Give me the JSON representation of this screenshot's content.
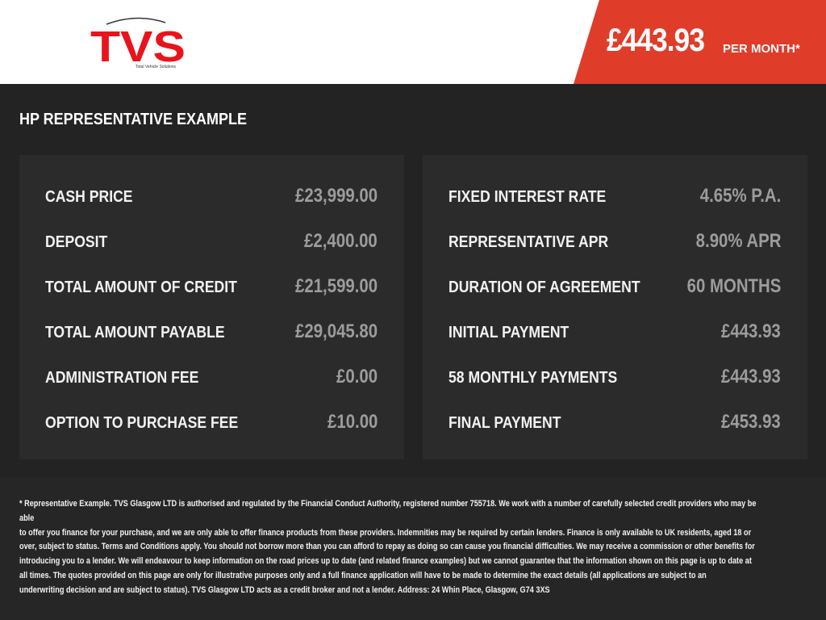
{
  "header": {
    "logo_text": "TVS",
    "logo_tagline": "Total Vehicle Solutions",
    "monthly_price": "£443.93",
    "per_month_label": "PER MONTH*",
    "brand_color": "#e03c2a"
  },
  "section_title": "HP REPRESENTATIVE EXAMPLE",
  "left_panel": [
    {
      "label": "CASH PRICE",
      "value": "£23,999.00"
    },
    {
      "label": "DEPOSIT",
      "value": "£2,400.00"
    },
    {
      "label": "TOTAL AMOUNT OF CREDIT",
      "value": "£21,599.00"
    },
    {
      "label": "TOTAL AMOUNT PAYABLE",
      "value": "£29,045.80"
    },
    {
      "label": "ADMINISTRATION FEE",
      "value": "£0.00"
    },
    {
      "label": "OPTION TO PURCHASE FEE",
      "value": "£10.00"
    }
  ],
  "right_panel": [
    {
      "label": "FIXED INTEREST RATE",
      "value": "4.65% P.A."
    },
    {
      "label": "REPRESENTATIVE APR",
      "value": "8.90% APR"
    },
    {
      "label": "DURATION OF AGREEMENT",
      "value": "60 MONTHS"
    },
    {
      "label": "INITIAL PAYMENT",
      "value": "£443.93"
    },
    {
      "label": "58 MONTHLY PAYMENTS",
      "value": "£443.93"
    },
    {
      "label": "FINAL PAYMENT",
      "value": "£453.93"
    }
  ],
  "disclaimer": [
    "* Representative Example. TVS Glasgow LTD is authorised and regulated by the Financial Conduct Authority, registered number 755718. We work with a number of carefully selected credit providers who may be able",
    "to offer you finance for your purchase, and we are only able to offer finance products from these providers. Indemnities may be required by certain lenders. Finance is only available to UK residents, aged 18 or",
    "over, subject to status. Terms and Conditions apply. You should not borrow more than you can afford to repay as doing so can cause you financial difficulties. We may receive a commission or other benefits for",
    "introducing you to a lender. We will endeavour to keep information on the road prices up to date (and related finance examples) but we cannot guarantee that the information shown on this page is up to date at",
    "all times. The quotes provided on this page are only for illustrative purposes only and a full finance application will have to be made to determine the exact details (all applications are subject to an",
    "underwriting decision and are subject to status). TVS Glasgow LTD acts as a credit broker and not a lender. Address: 24 Whin Place, Glasgow, G74 3XS"
  ]
}
